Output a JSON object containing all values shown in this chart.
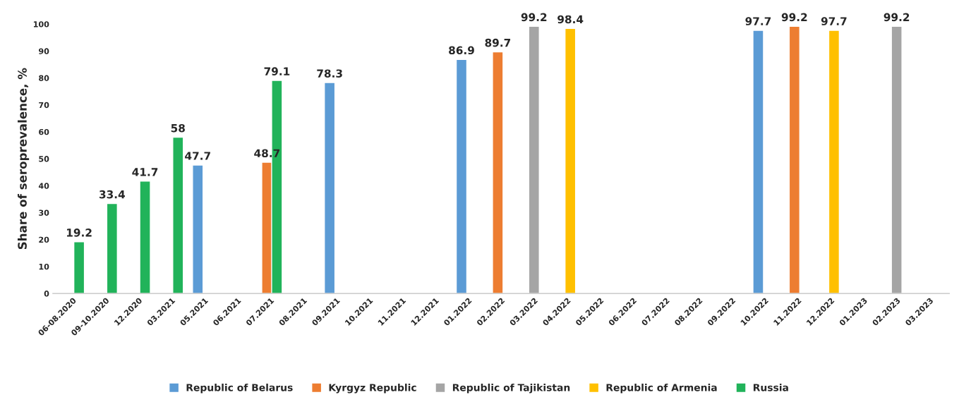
{
  "chart_data": {
    "type": "bar",
    "ylabel": "Share of seroprevalence, %",
    "categories": [
      "06-08.2020",
      "09-10.2020",
      "12.2020",
      "03.2021",
      "05.2021",
      "06.2021",
      "07.2021",
      "08.2021",
      "09.2021",
      "10.2021",
      "11.2021",
      "12.2021",
      "01.2022",
      "02.2022",
      "03.2022",
      "04.2022",
      "05.2022",
      "06.2022",
      "07.2022",
      "08.2022",
      "09.2022",
      "10.2022",
      "11.2022",
      "12.2022",
      "01.2023",
      "02.2023",
      "03.2023"
    ],
    "series": [
      {
        "name": "Republic of Belarus",
        "color": "#5b9bd5",
        "values": [
          null,
          null,
          null,
          null,
          47.7,
          null,
          null,
          null,
          78.3,
          null,
          null,
          null,
          86.9,
          null,
          null,
          null,
          null,
          null,
          null,
          null,
          null,
          97.7,
          null,
          null,
          null,
          null,
          null
        ]
      },
      {
        "name": "Kyrgyz Republic",
        "color": "#ed7d31",
        "values": [
          null,
          null,
          null,
          null,
          null,
          null,
          48.7,
          null,
          null,
          null,
          null,
          null,
          null,
          89.7,
          null,
          null,
          null,
          null,
          null,
          null,
          null,
          null,
          99.2,
          null,
          null,
          null,
          null
        ]
      },
      {
        "name": "Republic of Tajikistan",
        "color": "#a5a5a5",
        "values": [
          null,
          null,
          null,
          null,
          null,
          null,
          null,
          null,
          null,
          null,
          null,
          null,
          null,
          null,
          99.2,
          null,
          null,
          null,
          null,
          null,
          null,
          null,
          null,
          null,
          null,
          99.2,
          null
        ]
      },
      {
        "name": "Republic of Armenia",
        "color": "#ffc000",
        "values": [
          null,
          null,
          null,
          null,
          null,
          null,
          null,
          null,
          null,
          null,
          null,
          null,
          null,
          null,
          null,
          98.4,
          null,
          null,
          null,
          null,
          null,
          null,
          null,
          97.7,
          null,
          null,
          null
        ]
      },
      {
        "name": "Russia",
        "color": "#21b35a",
        "values": [
          19.2,
          33.4,
          41.7,
          58,
          null,
          null,
          79.1,
          null,
          null,
          null,
          null,
          null,
          null,
          null,
          null,
          null,
          null,
          null,
          null,
          null,
          null,
          null,
          null,
          null,
          null,
          null,
          null
        ]
      }
    ],
    "ylim": [
      0,
      100
    ],
    "yticks": [
      0,
      10,
      20,
      30,
      40,
      50,
      60,
      70,
      80,
      90,
      100
    ],
    "data_labels": true,
    "grid": false,
    "legend": "bottom"
  }
}
